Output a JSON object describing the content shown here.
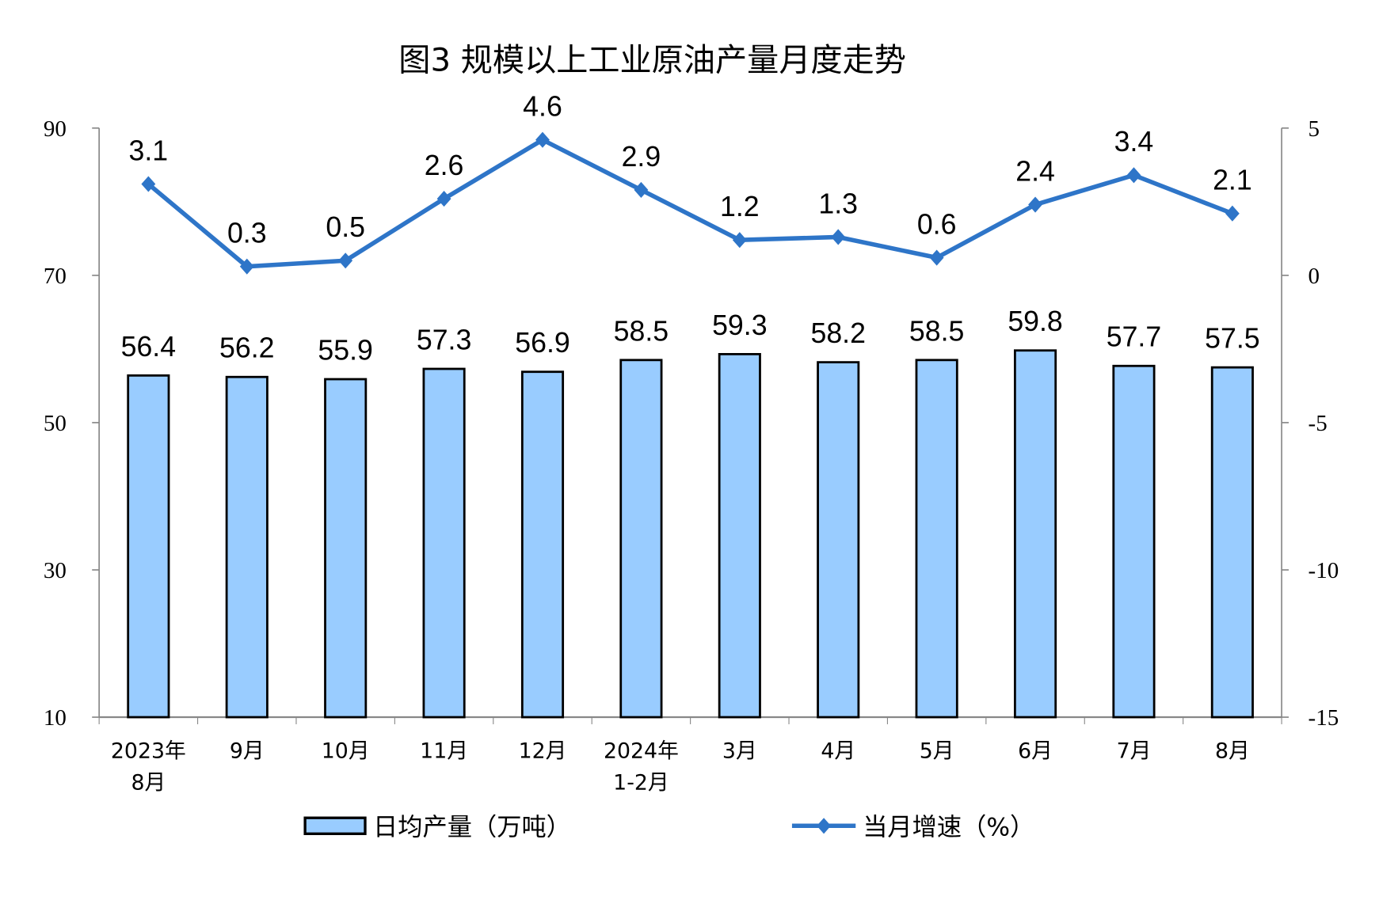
{
  "chart_data": {
    "type": "bar+line",
    "title": "图3  规模以上工业原油产量月度走势",
    "categories": [
      [
        "2023年",
        "8月"
      ],
      [
        "9月"
      ],
      [
        "10月"
      ],
      [
        "11月"
      ],
      [
        "12月"
      ],
      [
        "2024年",
        "1-2月"
      ],
      [
        "3月"
      ],
      [
        "4月"
      ],
      [
        "5月"
      ],
      [
        "6月"
      ],
      [
        "7月"
      ],
      [
        "8月"
      ]
    ],
    "series": [
      {
        "name": "日均产量（万吨）",
        "type": "bar",
        "axis": "left",
        "color": "#99CCFF",
        "values": [
          56.4,
          56.2,
          55.9,
          57.3,
          56.9,
          58.5,
          59.3,
          58.2,
          58.5,
          59.8,
          57.7,
          57.5
        ]
      },
      {
        "name": "当月增速（%）",
        "type": "line",
        "axis": "right",
        "color": "#2E75C8",
        "values": [
          3.1,
          0.3,
          0.5,
          2.6,
          4.6,
          2.9,
          1.2,
          1.3,
          0.6,
          2.4,
          3.4,
          2.1
        ]
      }
    ],
    "left_axis": {
      "ylim": [
        10,
        90
      ],
      "ticks": [
        "10",
        "30",
        "50",
        "70",
        "90"
      ]
    },
    "right_axis": {
      "ylim": [
        -15,
        5
      ],
      "ticks": [
        "-15",
        "-10",
        "-5",
        "0",
        "5"
      ]
    },
    "grid": false,
    "legend": "bottom"
  }
}
